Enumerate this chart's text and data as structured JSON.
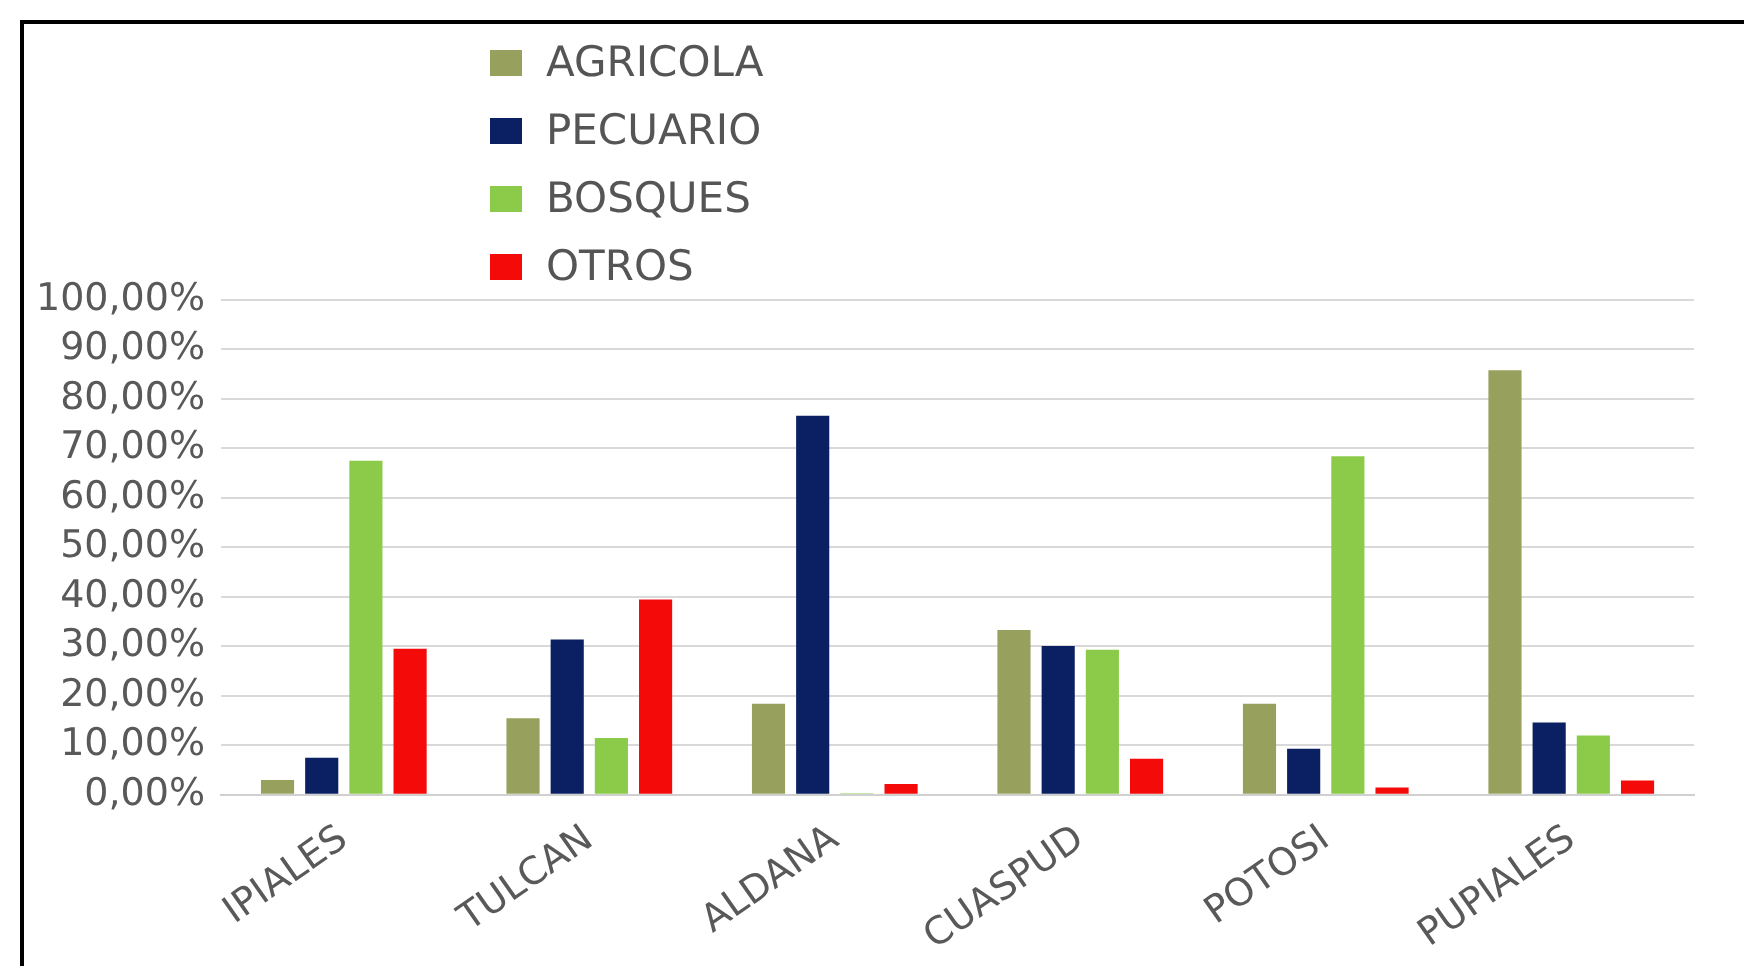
{
  "chart_data": {
    "type": "bar",
    "categories": [
      "IPIALES",
      "TULCAN",
      "ALDANA",
      "CUASPUD",
      "POTOSI",
      "PUPIALES"
    ],
    "series": [
      {
        "name": "AGRICOLA",
        "color": "#98a05e",
        "values": [
          3,
          15.5,
          18.4,
          33.3,
          18.4,
          85.8
        ]
      },
      {
        "name": "PECUARIO",
        "color": "#0b1f63",
        "values": [
          7.5,
          31.4,
          76.6,
          30.1,
          9.3,
          14.6
        ]
      },
      {
        "name": "BOSQUES",
        "color": "#8ccb4a",
        "values": [
          67.5,
          11.5,
          0.3,
          29.3,
          68.4,
          12
        ]
      },
      {
        "name": "OTROS",
        "color": "#f50a0a",
        "values": [
          29.5,
          39.5,
          2.2,
          7.3,
          1.5,
          2.9
        ]
      }
    ],
    "ylim": [
      0,
      100
    ],
    "yticks": [
      {
        "value": 0,
        "label": "0,00%"
      },
      {
        "value": 10,
        "label": "10,00%"
      },
      {
        "value": 20,
        "label": "20,00%"
      },
      {
        "value": 30,
        "label": "30,00%"
      },
      {
        "value": 40,
        "label": "40,00%"
      },
      {
        "value": 50,
        "label": "50,00%"
      },
      {
        "value": 60,
        "label": "60,00%"
      },
      {
        "value": 70,
        "label": "70,00%"
      },
      {
        "value": 80,
        "label": "80,00%"
      },
      {
        "value": 90,
        "label": "90,00%"
      },
      {
        "value": 100,
        "label": "100,00%"
      }
    ],
    "grid": "y",
    "legend": "top"
  }
}
